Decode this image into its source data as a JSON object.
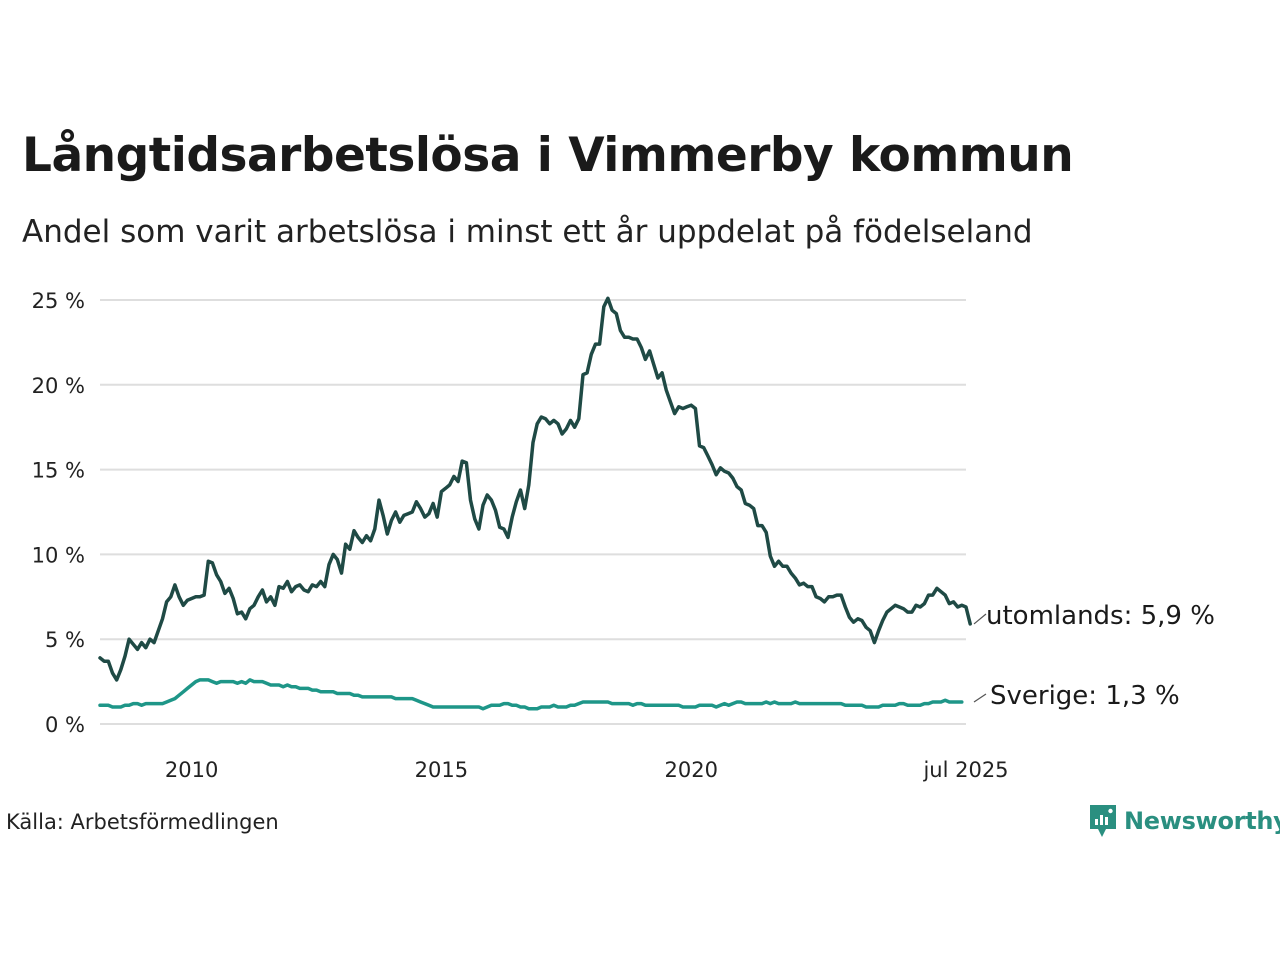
{
  "header": {
    "title": "Långtidsarbetslösa i Vimmerby kommun",
    "subtitle": "Andel som varit arbetslösa i minst ett år uppdelat på födelseland"
  },
  "footer": {
    "source": "Källa: Arbetsförmedlingen",
    "brand": "Newsworthy",
    "brand_color": "#2a8f80"
  },
  "chart_data": {
    "type": "line",
    "x_start": "2008-03",
    "x_end": "2025-07",
    "x_step": "month",
    "x_ticks": [
      "2010",
      "2015",
      "2020",
      "jul 2025"
    ],
    "y_ticks": [
      "0 %",
      "5 %",
      "10 %",
      "15 %",
      "20 %",
      "25 %"
    ],
    "ylim": [
      0,
      25
    ],
    "grid": true,
    "series": [
      {
        "name": "utomlands",
        "label": "utomlands: 5,9 %",
        "color": "#1f4a45",
        "values": [
          3.9,
          3.7,
          3.7,
          3.0,
          2.6,
          3.2,
          4.0,
          5.0,
          4.7,
          4.4,
          4.8,
          4.5,
          5.0,
          4.8,
          5.5,
          6.2,
          7.2,
          7.5,
          8.2,
          7.5,
          7.0,
          7.3,
          7.4,
          7.5,
          7.5,
          7.6,
          9.6,
          9.5,
          8.8,
          8.4,
          7.7,
          8.0,
          7.4,
          6.5,
          6.6,
          6.2,
          6.8,
          7.0,
          7.5,
          7.9,
          7.2,
          7.5,
          7.0,
          8.1,
          8.0,
          8.4,
          7.8,
          8.1,
          8.2,
          7.9,
          7.8,
          8.2,
          8.1,
          8.4,
          8.1,
          9.4,
          10.0,
          9.7,
          8.9,
          10.6,
          10.3,
          11.4,
          11.0,
          10.7,
          11.1,
          10.8,
          11.5,
          13.2,
          12.3,
          11.2,
          12.0,
          12.5,
          11.9,
          12.3,
          12.4,
          12.5,
          13.1,
          12.7,
          12.2,
          12.4,
          13.0,
          12.2,
          13.7,
          13.9,
          14.1,
          14.6,
          14.3,
          15.5,
          15.4,
          13.2,
          12.1,
          11.5,
          12.9,
          13.5,
          13.2,
          12.6,
          11.6,
          11.5,
          11.0,
          12.2,
          13.1,
          13.8,
          12.7,
          14.1,
          16.6,
          17.7,
          18.1,
          18.0,
          17.7,
          17.9,
          17.7,
          17.1,
          17.4,
          17.9,
          17.5,
          18.0,
          20.6,
          20.7,
          21.8,
          22.4,
          22.4,
          24.6,
          25.1,
          24.4,
          24.2,
          23.2,
          22.8,
          22.8,
          22.7,
          22.7,
          22.2,
          21.5,
          22.0,
          21.2,
          20.4,
          20.7,
          19.7,
          19.0,
          18.3,
          18.7,
          18.6,
          18.7,
          18.8,
          18.6,
          16.4,
          16.3,
          15.8,
          15.3,
          14.7,
          15.1,
          14.9,
          14.8,
          14.5,
          14.0,
          13.8,
          13.0,
          12.9,
          12.7,
          11.7,
          11.7,
          11.3,
          9.9,
          9.3,
          9.6,
          9.3,
          9.3,
          8.9,
          8.6,
          8.2,
          8.3,
          8.1,
          8.1,
          7.5,
          7.4,
          7.2,
          7.5,
          7.5,
          7.6,
          7.6,
          6.9,
          6.3,
          6.0,
          6.2,
          6.1,
          5.7,
          5.5,
          4.8,
          5.5,
          6.1,
          6.6,
          6.8,
          7.0,
          6.9,
          6.8,
          6.6,
          6.6,
          7.0,
          6.9,
          7.1,
          7.6,
          7.6,
          8.0,
          7.8,
          7.6,
          7.1,
          7.2,
          6.9,
          7.0,
          6.9,
          5.9
        ]
      },
      {
        "name": "Sverige",
        "label": "Sverige: 1,3 %",
        "color": "#1e9688",
        "values": [
          1.1,
          1.1,
          1.1,
          1.0,
          1.0,
          1.0,
          1.1,
          1.1,
          1.2,
          1.2,
          1.1,
          1.2,
          1.2,
          1.2,
          1.2,
          1.2,
          1.3,
          1.4,
          1.5,
          1.7,
          1.9,
          2.1,
          2.3,
          2.5,
          2.6,
          2.6,
          2.6,
          2.5,
          2.4,
          2.5,
          2.5,
          2.5,
          2.5,
          2.4,
          2.5,
          2.4,
          2.6,
          2.5,
          2.5,
          2.5,
          2.4,
          2.3,
          2.3,
          2.3,
          2.2,
          2.3,
          2.2,
          2.2,
          2.1,
          2.1,
          2.1,
          2.0,
          2.0,
          1.9,
          1.9,
          1.9,
          1.9,
          1.8,
          1.8,
          1.8,
          1.8,
          1.7,
          1.7,
          1.6,
          1.6,
          1.6,
          1.6,
          1.6,
          1.6,
          1.6,
          1.6,
          1.5,
          1.5,
          1.5,
          1.5,
          1.5,
          1.4,
          1.3,
          1.2,
          1.1,
          1.0,
          1.0,
          1.0,
          1.0,
          1.0,
          1.0,
          1.0,
          1.0,
          1.0,
          1.0,
          1.0,
          1.0,
          0.9,
          1.0,
          1.1,
          1.1,
          1.1,
          1.2,
          1.2,
          1.1,
          1.1,
          1.0,
          1.0,
          0.9,
          0.9,
          0.9,
          1.0,
          1.0,
          1.0,
          1.1,
          1.0,
          1.0,
          1.0,
          1.1,
          1.1,
          1.2,
          1.3,
          1.3,
          1.3,
          1.3,
          1.3,
          1.3,
          1.3,
          1.2,
          1.2,
          1.2,
          1.2,
          1.2,
          1.1,
          1.2,
          1.2,
          1.1,
          1.1,
          1.1,
          1.1,
          1.1,
          1.1,
          1.1,
          1.1,
          1.1,
          1.0,
          1.0,
          1.0,
          1.0,
          1.1,
          1.1,
          1.1,
          1.1,
          1.0,
          1.1,
          1.2,
          1.1,
          1.2,
          1.3,
          1.3,
          1.2,
          1.2,
          1.2,
          1.2,
          1.2,
          1.3,
          1.2,
          1.3,
          1.2,
          1.2,
          1.2,
          1.2,
          1.3,
          1.2,
          1.2,
          1.2,
          1.2,
          1.2,
          1.2,
          1.2,
          1.2,
          1.2,
          1.2,
          1.2,
          1.1,
          1.1,
          1.1,
          1.1,
          1.1,
          1.0,
          1.0,
          1.0,
          1.0,
          1.1,
          1.1,
          1.1,
          1.1,
          1.2,
          1.2,
          1.1,
          1.1,
          1.1,
          1.1,
          1.2,
          1.2,
          1.3,
          1.3,
          1.3,
          1.4,
          1.3,
          1.3,
          1.3,
          1.3
        ]
      }
    ]
  }
}
